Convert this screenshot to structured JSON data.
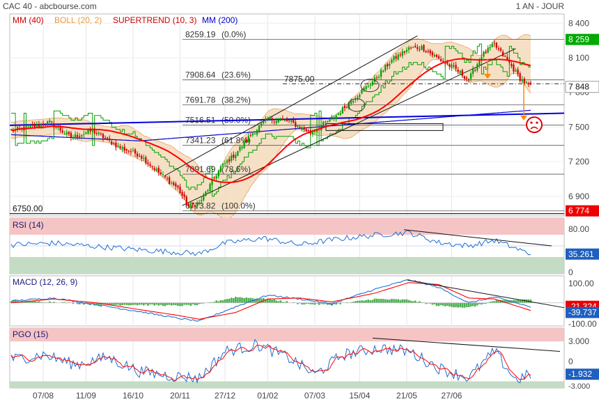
{
  "header": {
    "title": "CAC 40 - abcbourse.com",
    "period": "1 AN - JOUR"
  },
  "colors": {
    "price_up": "#00a000",
    "price_down": "#cc0000",
    "mm40": "#ff0000",
    "mm200": "#0000cc",
    "boll_fill": "#f5ddbf",
    "boll_line": "#e8a060",
    "supertrend_line": "#b30000",
    "supertrend_line_up": "#00a000",
    "trendline_blue": "#0000dd",
    "badge_green": "#00aa00",
    "badge_red": "#ee0000",
    "badge_blue": "#1f5fbf",
    "rsi_line": "#1f6fd0",
    "macd_line": "#1f6fd0",
    "signal_line": "#ff0000",
    "hist": "#4caf50",
    "overbought_fill": "#f5c4c4",
    "oversold_fill": "#c4dcc4"
  },
  "chart_data": [
    {
      "type": "candlestick",
      "panel": "price",
      "legend": [
        {
          "label": "MM (40)",
          "color": "#cc0000"
        },
        {
          "label": "BOLL (20, 2)",
          "color": "#e89a40"
        },
        {
          "label": "SUPERTREND (10, 3)",
          "color": "#cc0000"
        },
        {
          "label": "MM (200)",
          "color": "#0000cc"
        }
      ],
      "ylim": [
        6730,
        8480
      ],
      "yticks": [
        "8 400",
        "8 100",
        "7 800",
        "7 500",
        "7 200",
        "6 900"
      ],
      "ytick_values": [
        8400,
        8100,
        7800,
        7500,
        7200,
        6900
      ],
      "xticks": [
        "07/08",
        "11/09",
        "16/10",
        "20/11",
        "27/12",
        "01/02",
        "07/03",
        "15/04",
        "21/05",
        "27/06"
      ],
      "close_anchors": [
        {
          "day": 0,
          "close": 7470
        },
        {
          "day": 10,
          "close": 7500
        },
        {
          "day": 18,
          "close": 7540
        },
        {
          "day": 28,
          "close": 7410
        },
        {
          "day": 38,
          "close": 7470
        },
        {
          "day": 50,
          "close": 7330
        },
        {
          "day": 60,
          "close": 7260
        },
        {
          "day": 70,
          "close": 7090
        },
        {
          "day": 78,
          "close": 6970
        },
        {
          "day": 83,
          "close": 6810
        },
        {
          "day": 88,
          "close": 6840
        },
        {
          "day": 98,
          "close": 7150
        },
        {
          "day": 105,
          "close": 7270
        },
        {
          "day": 112,
          "close": 7430
        },
        {
          "day": 120,
          "close": 7570
        },
        {
          "day": 130,
          "close": 7550
        },
        {
          "day": 140,
          "close": 7450
        },
        {
          "day": 152,
          "close": 7600
        },
        {
          "day": 162,
          "close": 7780
        },
        {
          "day": 170,
          "close": 7910
        },
        {
          "day": 178,
          "close": 8080
        },
        {
          "day": 186,
          "close": 8180
        },
        {
          "day": 192,
          "close": 8190
        },
        {
          "day": 200,
          "close": 8090
        },
        {
          "day": 208,
          "close": 8000
        },
        {
          "day": 214,
          "close": 7910
        },
        {
          "day": 220,
          "close": 8120
        },
        {
          "day": 226,
          "close": 8210
        },
        {
          "day": 232,
          "close": 8080
        },
        {
          "day": 238,
          "close": 7920
        },
        {
          "day": 243,
          "close": 7848
        }
      ],
      "last_close": "7 848",
      "fibonacci": [
        {
          "label": "8259.19",
          "pct": "(0.0%)",
          "value": 8259.19
        },
        {
          "label": "7908.64",
          "pct": "(23.6%)",
          "value": 7908.64
        },
        {
          "label": "7691.78",
          "pct": "(38.2%)",
          "value": 7691.78
        },
        {
          "label": "7516.51",
          "pct": "(50.0%)",
          "value": 7516.51
        },
        {
          "label": "7341.23",
          "pct": "(61.8%)",
          "value": 7341.23
        },
        {
          "label": "7091.69",
          "pct": "(78.6%)",
          "value": 7091.69
        },
        {
          "label": "6773.82",
          "pct": "(100.0%)",
          "value": 6773.82
        }
      ],
      "level_7875": {
        "label": "7875.00",
        "value": 7875
      },
      "level_6750": {
        "label": "6750.00",
        "value": 6750
      },
      "badges": [
        {
          "label": "8 259",
          "value": 8259,
          "color": "#00aa00"
        },
        {
          "label": "7 848",
          "value": 7848,
          "color": "#ffffff"
        },
        {
          "label": "6 774",
          "value": 6774,
          "color": "#ee0000"
        }
      ]
    },
    {
      "type": "line",
      "panel": "rsi",
      "title": "RSI (14)",
      "ylim": [
        0,
        100
      ],
      "yticks": [
        "80.00",
        "35.261",
        "0"
      ],
      "overbought": 70,
      "oversold": 30,
      "last_value": "35.261",
      "anchors": [
        {
          "day": 0,
          "value": 52
        },
        {
          "day": 20,
          "value": 55
        },
        {
          "day": 40,
          "value": 49
        },
        {
          "day": 60,
          "value": 43
        },
        {
          "day": 80,
          "value": 38
        },
        {
          "day": 88,
          "value": 36
        },
        {
          "day": 100,
          "value": 55
        },
        {
          "day": 118,
          "value": 64
        },
        {
          "day": 135,
          "value": 52
        },
        {
          "day": 152,
          "value": 62
        },
        {
          "day": 172,
          "value": 70
        },
        {
          "day": 186,
          "value": 74
        },
        {
          "day": 200,
          "value": 56
        },
        {
          "day": 214,
          "value": 50
        },
        {
          "day": 226,
          "value": 60
        },
        {
          "day": 243,
          "value": 35.261
        }
      ]
    },
    {
      "type": "line",
      "panel": "macd",
      "title": "MACD (12, 26, 9)",
      "ylim": [
        -120,
        140
      ],
      "yticks": [
        "100.00",
        "-21.324",
        "-39.737",
        "-100.00"
      ],
      "last_macd": "-21.324",
      "last_signal": "-39.737",
      "macd_anchors": [
        {
          "day": 0,
          "value": 10
        },
        {
          "day": 20,
          "value": 25
        },
        {
          "day": 40,
          "value": -10
        },
        {
          "day": 60,
          "value": -45
        },
        {
          "day": 78,
          "value": -80
        },
        {
          "day": 88,
          "value": -95
        },
        {
          "day": 105,
          "value": -20
        },
        {
          "day": 120,
          "value": 40
        },
        {
          "day": 135,
          "value": 20
        },
        {
          "day": 150,
          "value": -5
        },
        {
          "day": 170,
          "value": 70
        },
        {
          "day": 186,
          "value": 120
        },
        {
          "day": 200,
          "value": 80
        },
        {
          "day": 214,
          "value": 0
        },
        {
          "day": 226,
          "value": 30
        },
        {
          "day": 243,
          "value": -21.324
        }
      ],
      "signal_anchors": [
        {
          "day": 0,
          "value": 0
        },
        {
          "day": 20,
          "value": 20
        },
        {
          "day": 40,
          "value": 0
        },
        {
          "day": 60,
          "value": -35
        },
        {
          "day": 78,
          "value": -65
        },
        {
          "day": 88,
          "value": -85
        },
        {
          "day": 105,
          "value": -50
        },
        {
          "day": 120,
          "value": 20
        },
        {
          "day": 135,
          "value": 25
        },
        {
          "day": 150,
          "value": 5
        },
        {
          "day": 170,
          "value": 50
        },
        {
          "day": 186,
          "value": 105
        },
        {
          "day": 200,
          "value": 95
        },
        {
          "day": 214,
          "value": 25
        },
        {
          "day": 226,
          "value": 20
        },
        {
          "day": 243,
          "value": -39.737
        }
      ]
    },
    {
      "type": "line",
      "panel": "pgo",
      "title": "PGO (15)",
      "ylim": [
        -4,
        5
      ],
      "yticks": [
        "3.000",
        "0",
        "-1.932",
        "-3.000"
      ],
      "last_value": "-1.932",
      "overbought": 3,
      "oversold": -3,
      "anchors": [
        {
          "day": 0,
          "value": 0.3
        },
        {
          "day": 15,
          "value": 1.0
        },
        {
          "day": 30,
          "value": -0.5
        },
        {
          "day": 45,
          "value": 0.6
        },
        {
          "day": 60,
          "value": -1.5
        },
        {
          "day": 75,
          "value": -2.2
        },
        {
          "day": 88,
          "value": -2.5
        },
        {
          "day": 100,
          "value": 1.5
        },
        {
          "day": 115,
          "value": 2.5
        },
        {
          "day": 130,
          "value": 0.5
        },
        {
          "day": 142,
          "value": -2.0
        },
        {
          "day": 155,
          "value": 1.0
        },
        {
          "day": 172,
          "value": 2.0
        },
        {
          "day": 186,
          "value": 1.5
        },
        {
          "day": 200,
          "value": -1.0
        },
        {
          "day": 214,
          "value": -2.5
        },
        {
          "day": 226,
          "value": 1.5
        },
        {
          "day": 236,
          "value": -2.8
        },
        {
          "day": 243,
          "value": -1.932
        }
      ]
    }
  ]
}
